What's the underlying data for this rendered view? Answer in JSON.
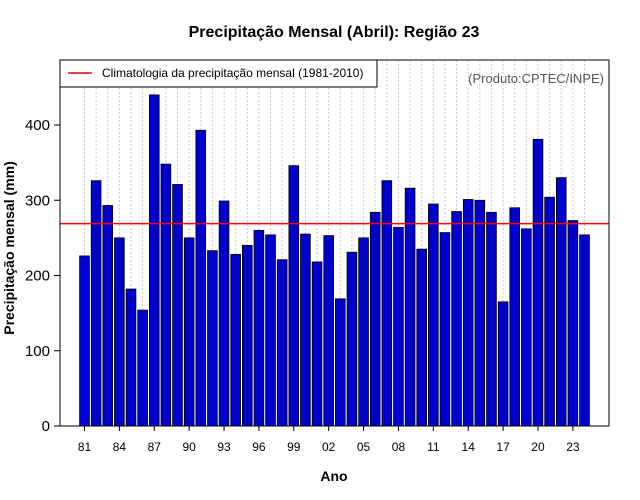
{
  "chart_data": {
    "type": "bar",
    "title": "Precipitação Mensal (Abril): Região 23",
    "xlabel": "Ano",
    "ylabel": "Precipitação mensal (mm)",
    "credit": "(Produto:CPTEC/INPE)",
    "ylim": [
      0,
      480
    ],
    "yticks": [
      0,
      100,
      200,
      300,
      400
    ],
    "x_tick_labels": [
      "81",
      "84",
      "87",
      "90",
      "93",
      "96",
      "99",
      "02",
      "05",
      "08",
      "11",
      "14",
      "17",
      "20",
      "23"
    ],
    "categories": [
      "1981",
      "1982",
      "1983",
      "1984",
      "1985",
      "1986",
      "1987",
      "1988",
      "1989",
      "1990",
      "1991",
      "1992",
      "1993",
      "1994",
      "1995",
      "1996",
      "1997",
      "1998",
      "1999",
      "2000",
      "2001",
      "2002",
      "2003",
      "2004",
      "2005",
      "2006",
      "2007",
      "2008",
      "2009",
      "2010",
      "2011",
      "2012",
      "2013",
      "2014",
      "2015",
      "2016",
      "2017",
      "2018",
      "2019",
      "2020",
      "2021",
      "2022",
      "2023",
      "2024"
    ],
    "values": [
      226,
      326,
      293,
      250,
      182,
      154,
      440,
      348,
      321,
      250,
      393,
      233,
      299,
      228,
      240,
      260,
      254,
      221,
      346,
      255,
      218,
      253,
      169,
      231,
      250,
      284,
      326,
      264,
      316,
      235,
      295,
      257,
      285,
      301,
      300,
      284,
      165,
      290,
      262,
      381,
      304,
      330,
      273,
      254
    ],
    "climatology": {
      "label": "Climatologia da precipitação mensal (1981-2010)",
      "value": 269,
      "color": "#ff0000"
    },
    "bar_color": "#0000cd",
    "grid": true,
    "legend_position": "top-left"
  }
}
